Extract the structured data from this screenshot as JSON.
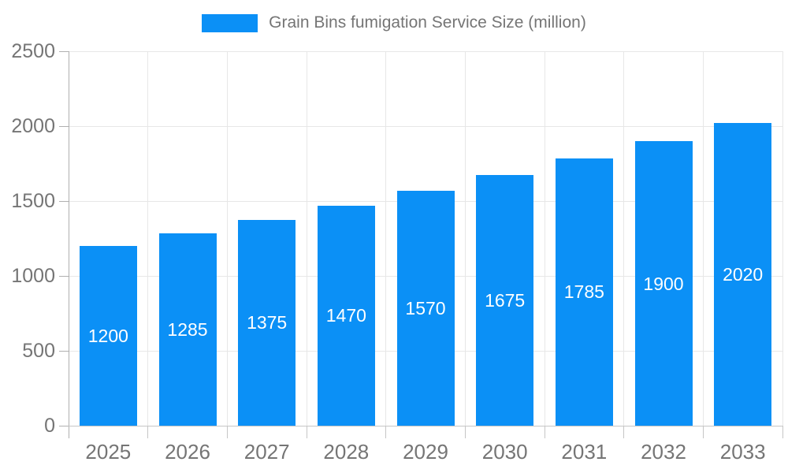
{
  "legend": {
    "label": "Grain Bins fumigation Service Size (million)"
  },
  "chart_data": {
    "type": "bar",
    "title": "Grain Bins fumigation Service Size (million)",
    "categories": [
      "2025",
      "2026",
      "2027",
      "2028",
      "2029",
      "2030",
      "2031",
      "2032",
      "2033"
    ],
    "values": [
      1200,
      1285,
      1375,
      1470,
      1570,
      1675,
      1785,
      1900,
      2020
    ],
    "series": [
      {
        "name": "Grain Bins fumigation Service Size (million)",
        "values": [
          1200,
          1285,
          1375,
          1470,
          1570,
          1675,
          1785,
          1900,
          2020
        ]
      }
    ],
    "xlabel": "",
    "ylabel": "",
    "ylim": [
      0,
      2500
    ],
    "yticks": [
      0,
      500,
      1000,
      1500,
      2000,
      2500
    ],
    "grid": true,
    "legend_position": "top-center",
    "bar_color": "#0b90f6",
    "bar_label_color": "#ffffff",
    "axis_text_color": "#757575"
  }
}
